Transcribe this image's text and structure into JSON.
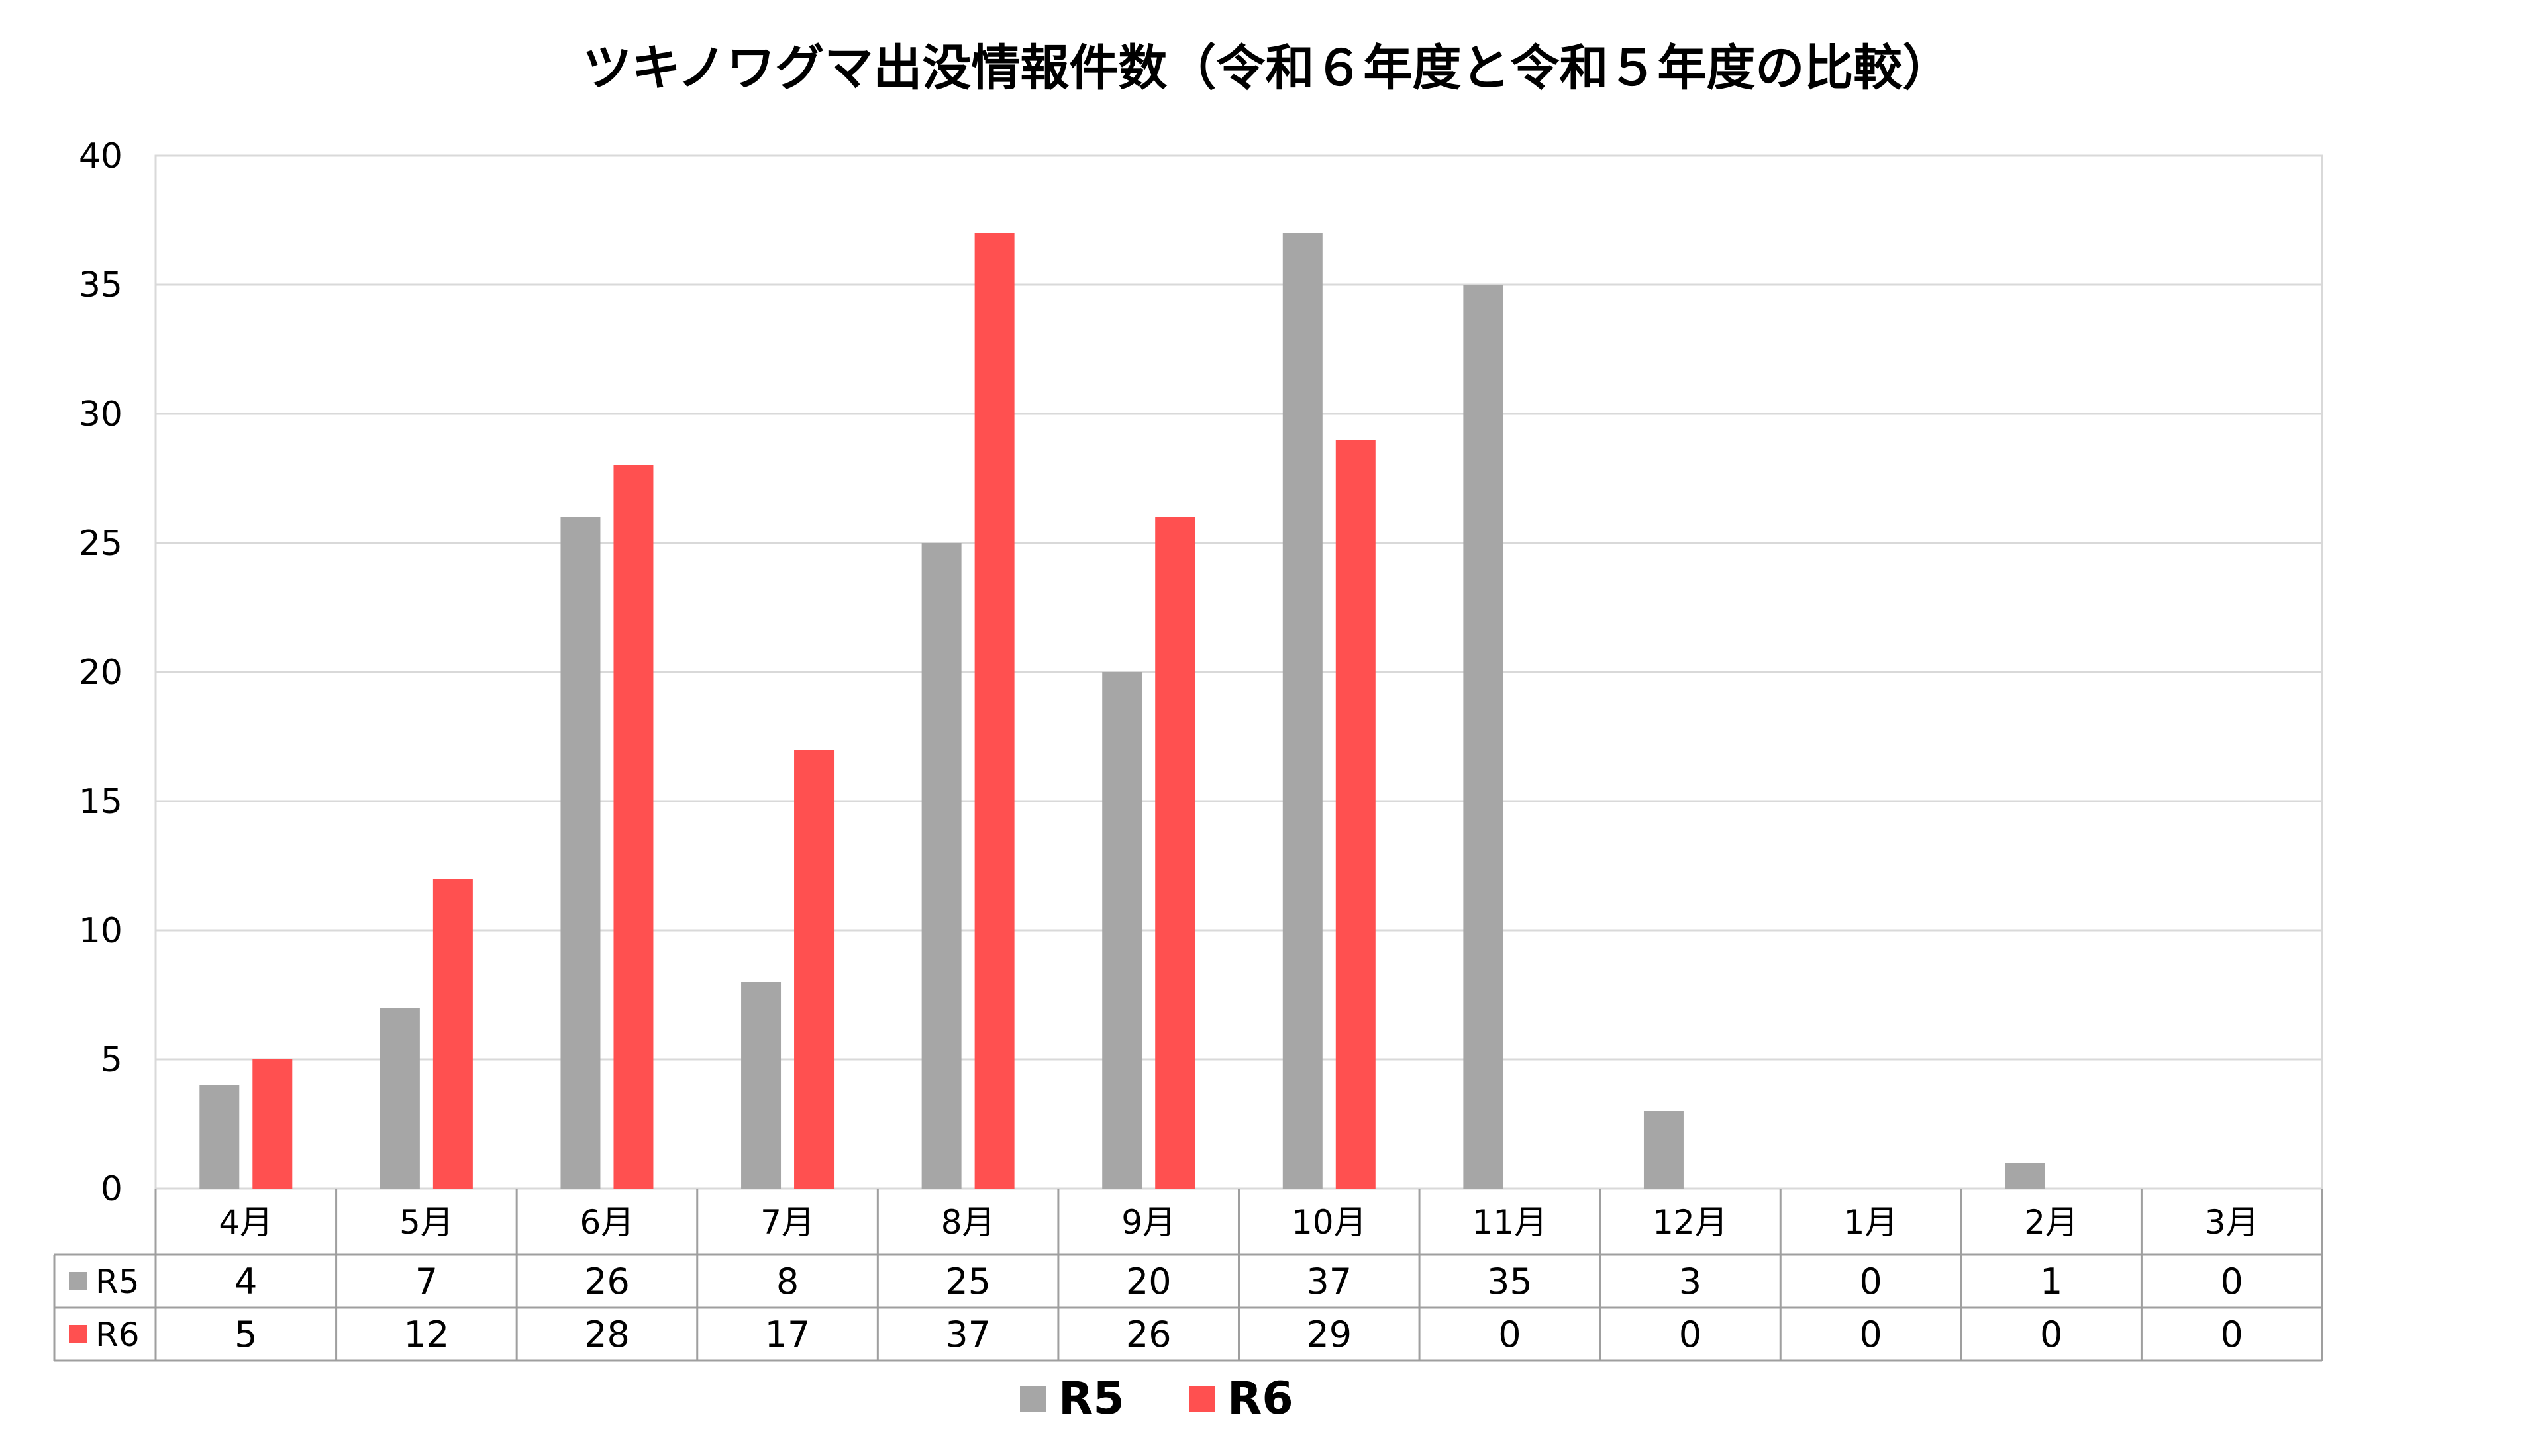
{
  "chart_data": {
    "type": "bar",
    "title": "ツキノワグマ出没情報件数（令和６年度と令和５年度の比較）",
    "categories": [
      "4月",
      "5月",
      "6月",
      "7月",
      "8月",
      "9月",
      "10月",
      "11月",
      "12月",
      "1月",
      "2月",
      "3月"
    ],
    "series": [
      {
        "name": "R5",
        "color": "#a6a6a6",
        "values": [
          4,
          7,
          26,
          8,
          25,
          20,
          37,
          35,
          3,
          0,
          1,
          0
        ],
        "table_values": [
          "4",
          "7",
          "26",
          "8",
          "25",
          "20",
          "37",
          "35",
          "3",
          "0",
          "1",
          "0"
        ]
      },
      {
        "name": "R6",
        "color": "#ff5050",
        "values": [
          5,
          12,
          28,
          17,
          37,
          26,
          29,
          0,
          0,
          0,
          0,
          0
        ],
        "table_values": [
          "5",
          "12",
          "28",
          "17",
          "37",
          "26",
          "29",
          "0",
          "0",
          "0",
          "0",
          "0"
        ]
      }
    ],
    "ylim": [
      0,
      40
    ],
    "yticks": [
      "0",
      "5",
      "10",
      "15",
      "20",
      "25",
      "30",
      "35",
      "40"
    ],
    "grid": true,
    "legend": "bottom",
    "data_table": true
  }
}
